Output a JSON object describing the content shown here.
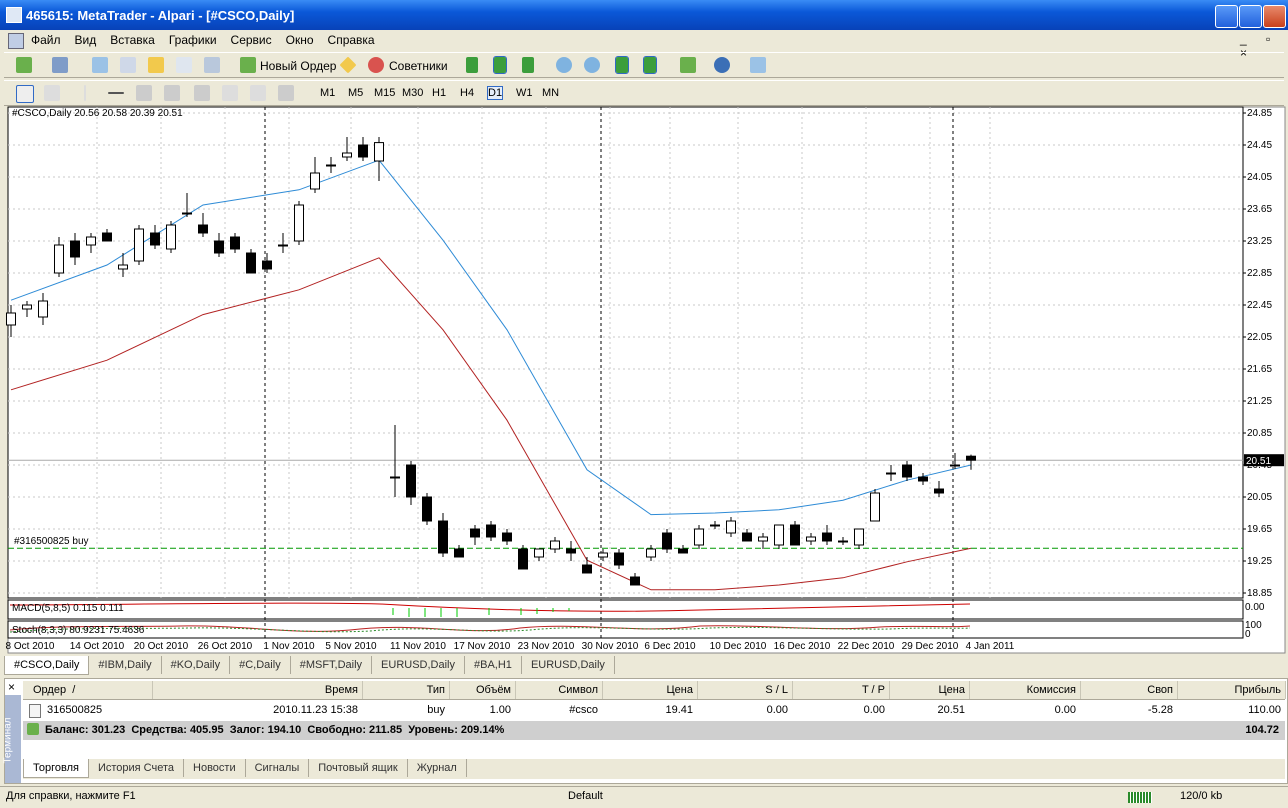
{
  "window": {
    "title": "465615: MetaTrader - Alpari - [#CSCO,Daily]",
    "menu": [
      "Файл",
      "Вид",
      "Вставка",
      "Графики",
      "Сервис",
      "Окно",
      "Справка"
    ],
    "toolbar": {
      "new_order": "Новый Ордер",
      "experts": "Советники"
    },
    "timeframes": [
      "M1",
      "M5",
      "M15",
      "M30",
      "H1",
      "H4",
      "D1",
      "W1",
      "MN"
    ],
    "chart_tabs": [
      "#CSCO,Daily",
      "#IBM,Daily",
      "#KO,Daily",
      "#C,Daily",
      "#MSFT,Daily",
      "EURUSD,Daily",
      "#BA,H1",
      "EURUSD,Daily"
    ]
  },
  "chart_data": {
    "type": "candlestick",
    "info": "#CSCO,Daily  20.56 20.58 20.39 20.51",
    "open": [
      22.2,
      22.4,
      22.3,
      22.85,
      23.25,
      23.2,
      23.35,
      22.9,
      23.0,
      23.35,
      23.15,
      23.6,
      23.45,
      23.25,
      23.3,
      23.1,
      23.0,
      23.2,
      23.25,
      23.9,
      24.2,
      24.3,
      24.45,
      24.25,
      20.3,
      20.45,
      20.05,
      19.75,
      19.4,
      19.65,
      19.7,
      19.6,
      19.4,
      19.3,
      19.4,
      19.4,
      19.2,
      19.3,
      19.35,
      19.05,
      19.3,
      19.6,
      19.4,
      19.45,
      19.7,
      19.6,
      19.6,
      19.5,
      19.45,
      19.7,
      19.5,
      19.6,
      19.5,
      19.45,
      19.75,
      20.35,
      20.45,
      20.3,
      20.15,
      20.45,
      20.56
    ],
    "high": [
      22.45,
      22.5,
      22.6,
      23.3,
      23.35,
      23.35,
      23.4,
      23.1,
      23.45,
      23.45,
      23.5,
      23.85,
      23.6,
      23.35,
      23.35,
      23.15,
      23.1,
      23.35,
      23.75,
      24.3,
      24.3,
      24.55,
      24.55,
      24.55,
      20.95,
      20.5,
      20.1,
      19.85,
      19.45,
      19.7,
      19.75,
      19.65,
      19.45,
      19.4,
      19.55,
      19.5,
      19.3,
      19.4,
      19.4,
      19.1,
      19.45,
      19.65,
      19.45,
      19.7,
      19.75,
      19.8,
      19.65,
      19.6,
      19.7,
      19.75,
      19.6,
      19.7,
      19.55,
      19.65,
      20.15,
      20.45,
      20.5,
      20.35,
      20.25,
      20.6,
      20.58
    ],
    "low": [
      22.05,
      22.3,
      22.2,
      22.8,
      22.95,
      23.1,
      23.25,
      22.8,
      22.95,
      23.15,
      23.1,
      23.55,
      23.3,
      23.05,
      23.1,
      22.85,
      22.85,
      23.1,
      23.2,
      23.85,
      24.1,
      24.25,
      24.25,
      24.0,
      20.05,
      19.95,
      19.7,
      19.3,
      19.3,
      19.45,
      19.5,
      19.45,
      19.15,
      19.25,
      19.35,
      19.25,
      19.1,
      19.25,
      19.15,
      18.95,
      19.25,
      19.35,
      19.35,
      19.4,
      19.65,
      19.55,
      19.5,
      19.4,
      19.4,
      19.45,
      19.45,
      19.45,
      19.45,
      19.4,
      19.75,
      20.25,
      20.25,
      20.2,
      20.05,
      20.4,
      20.39
    ],
    "close": [
      22.35,
      22.45,
      22.5,
      23.2,
      23.05,
      23.3,
      23.25,
      22.95,
      23.4,
      23.2,
      23.45,
      23.6,
      23.35,
      23.1,
      23.15,
      22.85,
      22.9,
      23.2,
      23.7,
      24.1,
      24.2,
      24.35,
      24.3,
      24.48,
      20.3,
      20.05,
      19.75,
      19.35,
      19.3,
      19.55,
      19.55,
      19.5,
      19.15,
      19.4,
      19.5,
      19.35,
      19.1,
      19.35,
      19.2,
      18.95,
      19.4,
      19.4,
      19.35,
      19.65,
      19.7,
      19.75,
      19.5,
      19.55,
      19.7,
      19.45,
      19.55,
      19.5,
      19.5,
      19.65,
      20.1,
      20.35,
      20.3,
      20.25,
      20.1,
      20.45,
      20.51
    ],
    "ma_x": [
      0,
      6,
      12,
      18,
      23,
      27,
      31,
      36,
      40,
      44,
      48,
      52,
      56,
      60
    ],
    "series": [
      {
        "color": "#2e8bd6",
        "values": [
          22.51,
          22.95,
          23.7,
          23.89,
          24.26,
          23.26,
          22.14,
          20.39,
          19.83,
          19.85,
          19.89,
          20.01,
          20.26,
          20.45
        ]
      },
      {
        "color": "#b22222",
        "values": [
          21.39,
          21.76,
          22.33,
          22.64,
          23.04,
          22.14,
          21.01,
          19.26,
          18.89,
          18.89,
          18.95,
          19.04,
          19.24,
          19.41
        ]
      }
    ],
    "ylim": [
      18.85,
      24.85
    ],
    "yticks": [
      {
        "value": 24.85,
        "label": "24.85"
      },
      {
        "value": 24.45,
        "label": "24.45"
      },
      {
        "value": 24.05,
        "label": "24.05"
      },
      {
        "value": 23.65,
        "label": "23.65"
      },
      {
        "value": 23.25,
        "label": "23.25"
      },
      {
        "value": 22.85,
        "label": "22.85"
      },
      {
        "value": 22.45,
        "label": "22.45"
      },
      {
        "value": 22.05,
        "label": "22.05"
      },
      {
        "value": 21.65,
        "label": "21.65"
      },
      {
        "value": 21.25,
        "label": "21.25"
      },
      {
        "value": 20.85,
        "label": "20.85"
      },
      {
        "value": 20.45,
        "label": "20.45"
      },
      {
        "value": 20.05,
        "label": "20.05"
      },
      {
        "value": 19.65,
        "label": "19.65"
      },
      {
        "value": 19.25,
        "label": "19.25"
      },
      {
        "value": 18.85,
        "label": "18.85"
      }
    ],
    "grid": true,
    "current_price": 20.51,
    "order_line": {
      "label": "#316500825 buy",
      "price": 19.41
    },
    "x_labels": [
      "8 Oct 2010",
      "14 Oct 2010",
      "20 Oct 2010",
      "26 Oct 2010",
      "1 Nov 2010",
      "5 Nov 2010",
      "11 Nov 2010",
      "17 Nov 2010",
      "23 Nov 2010",
      "30 Nov 2010",
      "6 Dec 2010",
      "10 Dec 2010",
      "16 Dec 2010",
      "22 Dec 2010",
      "29 Dec 2010",
      "4 Jan 2011"
    ],
    "macd": {
      "label": "MACD(5,8,5) 0.115 0.111",
      "axis": "0.00"
    },
    "stoch": {
      "label": "Stoch(8,3,3) 80.9231 75.4636",
      "axis_top": "100",
      "axis_bottom": "0"
    }
  },
  "terminal": {
    "side": "Терминал",
    "columns": [
      "Ордер  /",
      "Время",
      "Тип",
      "Объём",
      "Символ",
      "Цена",
      "S / L",
      "T / P",
      "Цена",
      "Комиссия",
      "Своп",
      "Прибыль"
    ],
    "rows": [
      [
        "316500825",
        "2010.11.23 15:38",
        "buy",
        "1.00",
        "#csco",
        "19.41",
        "0.00",
        "0.00",
        "20.51",
        "0.00",
        "-5.28",
        "110.00"
      ]
    ],
    "summary": "Баланс: 301.23  Средства: 405.95  Залог: 194.10  Свободно: 211.85  Уровень: 209.14%",
    "summary_profit": "104.72",
    "tabs": [
      "Торговля",
      "История Счета",
      "Новости",
      "Сигналы",
      "Почтовый ящик",
      "Журнал"
    ]
  },
  "status": {
    "help": "Для справки, нажмите F1",
    "profile": "Default",
    "traffic": "120/0 kb"
  }
}
